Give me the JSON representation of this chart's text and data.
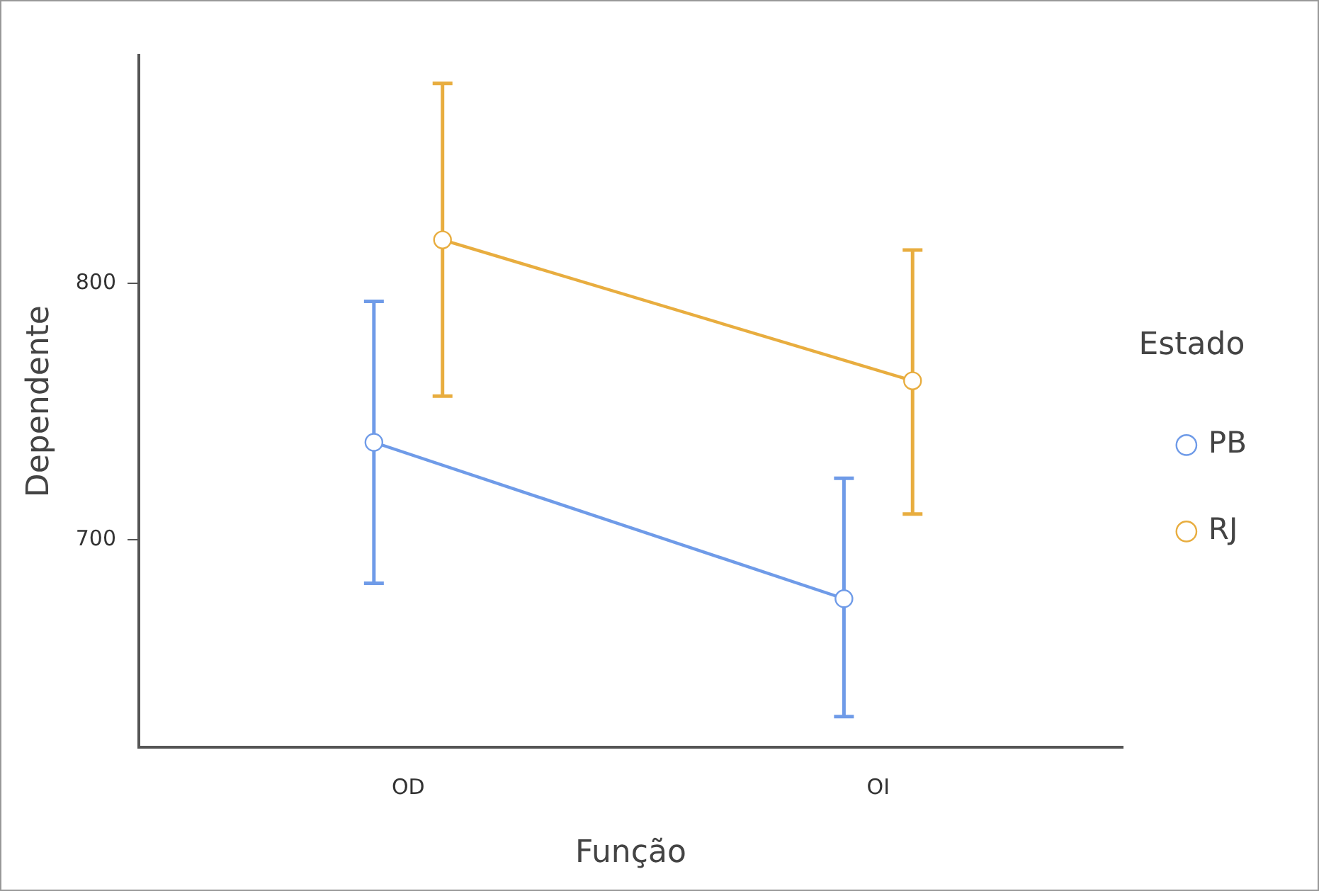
{
  "chart_data": {
    "type": "line",
    "xlabel": "Função",
    "ylabel": "Dependente",
    "legend_title": "Estado",
    "legend": "right",
    "marker": "circle",
    "grid": false,
    "categories": [
      "OD",
      "OI"
    ],
    "ylim": [
      619,
      889
    ],
    "yticks": [
      700,
      800
    ],
    "series": [
      {
        "name": "PB",
        "color": "#6f9be8",
        "values": [
          738,
          677
        ],
        "errors": [
          [
            683,
            793
          ],
          [
            631,
            724
          ]
        ]
      },
      {
        "name": "RJ",
        "color": "#e8ad3f",
        "values": [
          817,
          762
        ],
        "errors": [
          [
            756,
            878
          ],
          [
            710,
            813
          ]
        ]
      }
    ]
  }
}
